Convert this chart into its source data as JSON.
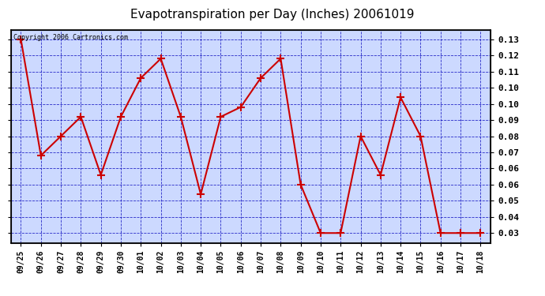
{
  "title": "Evapotranspiration per Day (Inches) 20061019",
  "copyright": "Copyright 2006 Cartronics.com",
  "x_labels": [
    "09/25",
    "09/26",
    "09/27",
    "09/28",
    "09/29",
    "09/30",
    "10/01",
    "10/02",
    "10/03",
    "10/04",
    "10/05",
    "10/06",
    "10/07",
    "10/08",
    "10/09",
    "10/10",
    "10/11",
    "10/12",
    "10/13",
    "10/14",
    "10/15",
    "10/16",
    "10/17",
    "10/18"
  ],
  "y_values": [
    0.13,
    0.07,
    0.08,
    0.09,
    0.06,
    0.09,
    0.11,
    0.12,
    0.09,
    0.05,
    0.09,
    0.095,
    0.11,
    0.12,
    0.055,
    0.03,
    0.03,
    0.08,
    0.06,
    0.1,
    0.08,
    0.03,
    0.03,
    0.03
  ],
  "ylim_min": 0.025,
  "ylim_max": 0.135,
  "y_ticks": [
    0.03,
    0.04,
    0.05,
    0.06,
    0.06,
    0.07,
    0.08,
    0.09,
    0.1,
    0.1,
    0.11,
    0.12,
    0.13
  ],
  "line_color": "#cc0000",
  "marker_color": "#cc0000",
  "plot_bg": "#ccd9ff",
  "grid_color": "#0000bb",
  "title_color": "#000000",
  "copyright_color": "#000000"
}
